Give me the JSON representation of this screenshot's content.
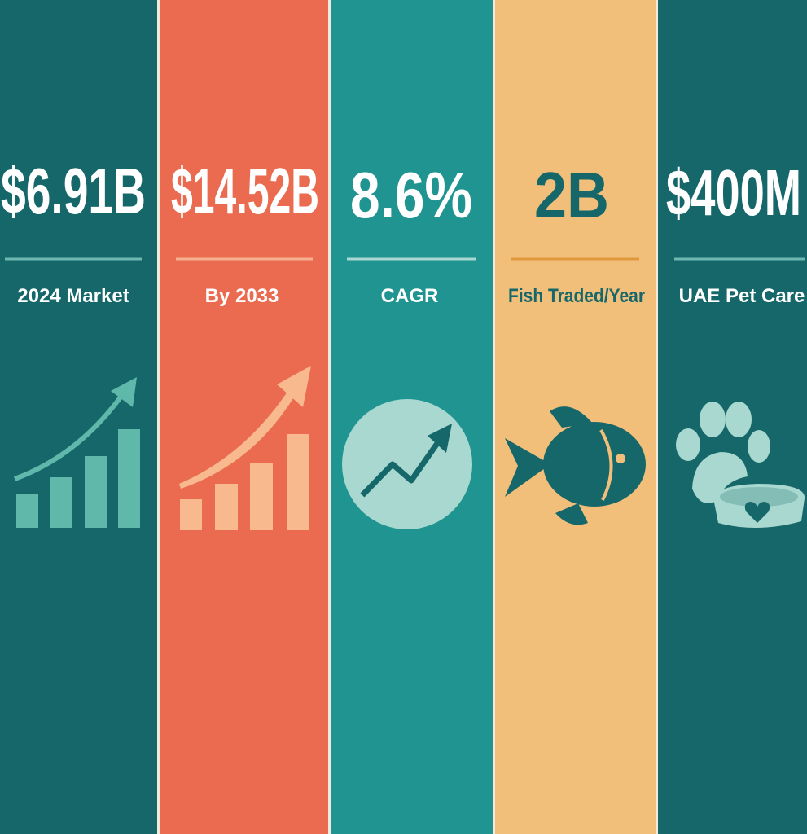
{
  "panels": [
    {
      "value": "$6.91B",
      "label": "2024 Market"
    },
    {
      "value": "$14.52B",
      "label": "By 2033"
    },
    {
      "value": "8.6%",
      "label": "CAGR"
    },
    {
      "value": "2B",
      "label": "Fish Traded/Year"
    },
    {
      "value": "$400M",
      "label": "UAE Pet Care"
    }
  ]
}
